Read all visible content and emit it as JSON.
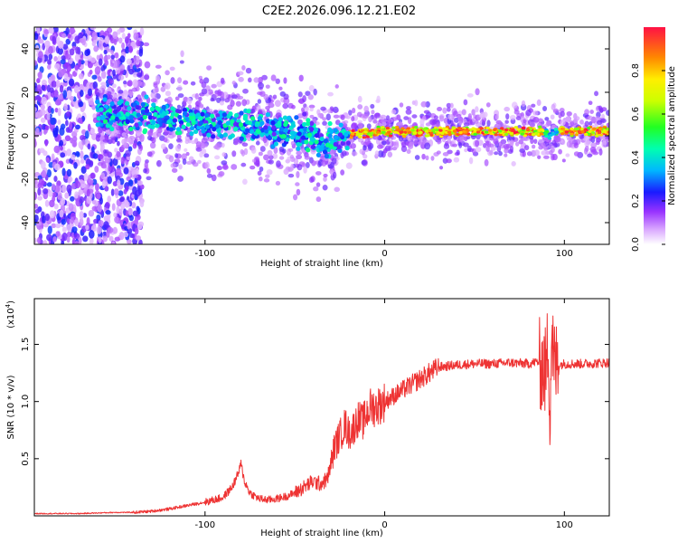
{
  "title": "C2E2.2026.096.12.21.E02",
  "chart_data": [
    {
      "type": "heatmap",
      "xlabel": "Height of straight line (km)",
      "ylabel": "Frequency (Hz)",
      "xlim": [
        -195,
        125
      ],
      "ylim": [
        -50,
        50
      ],
      "xticks": [
        "-100",
        "0",
        "100"
      ],
      "xtick_values": [
        -100,
        0,
        100
      ],
      "yticks": [
        "-40",
        "-20",
        "0",
        "20",
        "40"
      ],
      "ytick_values": [
        -40,
        -20,
        0,
        20,
        40
      ],
      "colorbar": {
        "label": "Normalized spectral amplitude",
        "range": [
          0,
          1
        ],
        "ticks": [
          "0.0",
          "0.2",
          "0.4",
          "0.6",
          "0.8"
        ],
        "tick_values": [
          0.0,
          0.2,
          0.4,
          0.6,
          0.8
        ]
      },
      "ridge": {
        "x": [
          -155,
          -130,
          -110,
          -90,
          -70,
          -55,
          -45,
          -38,
          -33,
          -28,
          -22,
          -15,
          0,
          50,
          88,
          92,
          96,
          125
        ],
        "y": [
          10,
          9,
          7,
          6,
          4,
          2,
          1,
          -1,
          -3,
          -1,
          0,
          1,
          2,
          2,
          2,
          1,
          2,
          2
        ]
      }
    },
    {
      "type": "line",
      "xlabel": "Height of straight line (km)",
      "ylabel": "SNR (10 * v/v)",
      "exponent_label": "(x10",
      "exponent": "4",
      "xlim": [
        -195,
        125
      ],
      "ylim": [
        0,
        1.9
      ],
      "xticks": [
        "-100",
        "0",
        "100"
      ],
      "xtick_values": [
        -100,
        0,
        100
      ],
      "yticks": [
        "0.5",
        "1.0",
        "1.5"
      ],
      "ytick_values": [
        0.5,
        1.0,
        1.5
      ],
      "color": "#ee3333",
      "series": [
        {
          "name": "SNR",
          "x": [
            -195,
            -170,
            -150,
            -140,
            -130,
            -120,
            -110,
            -100,
            -95,
            -90,
            -85,
            -82,
            -80,
            -78,
            -75,
            -70,
            -65,
            -60,
            -55,
            -50,
            -45,
            -40,
            -36,
            -32,
            -30,
            -28,
            -25,
            -22,
            -20,
            -18,
            -15,
            -12,
            -10,
            -8,
            -5,
            0,
            5,
            10,
            15,
            20,
            25,
            30,
            40,
            50,
            60,
            70,
            80,
            85,
            88,
            90,
            91,
            92,
            93,
            94,
            96,
            100,
            110,
            125
          ],
          "y": [
            0.02,
            0.02,
            0.03,
            0.03,
            0.04,
            0.06,
            0.09,
            0.12,
            0.14,
            0.16,
            0.25,
            0.35,
            0.45,
            0.3,
            0.2,
            0.15,
            0.14,
            0.15,
            0.17,
            0.2,
            0.25,
            0.3,
            0.28,
            0.32,
            0.45,
            0.6,
            0.7,
            0.8,
            0.72,
            0.75,
            0.85,
            0.82,
            0.9,
            0.95,
            0.95,
            1.0,
            1.05,
            1.1,
            1.15,
            1.2,
            1.25,
            1.3,
            1.32,
            1.33,
            1.33,
            1.34,
            1.33,
            1.35,
            1.3,
            1.25,
            1.6,
            0.85,
            1.7,
            1.3,
            1.32,
            1.33,
            1.33,
            1.34
          ]
        }
      ]
    }
  ]
}
